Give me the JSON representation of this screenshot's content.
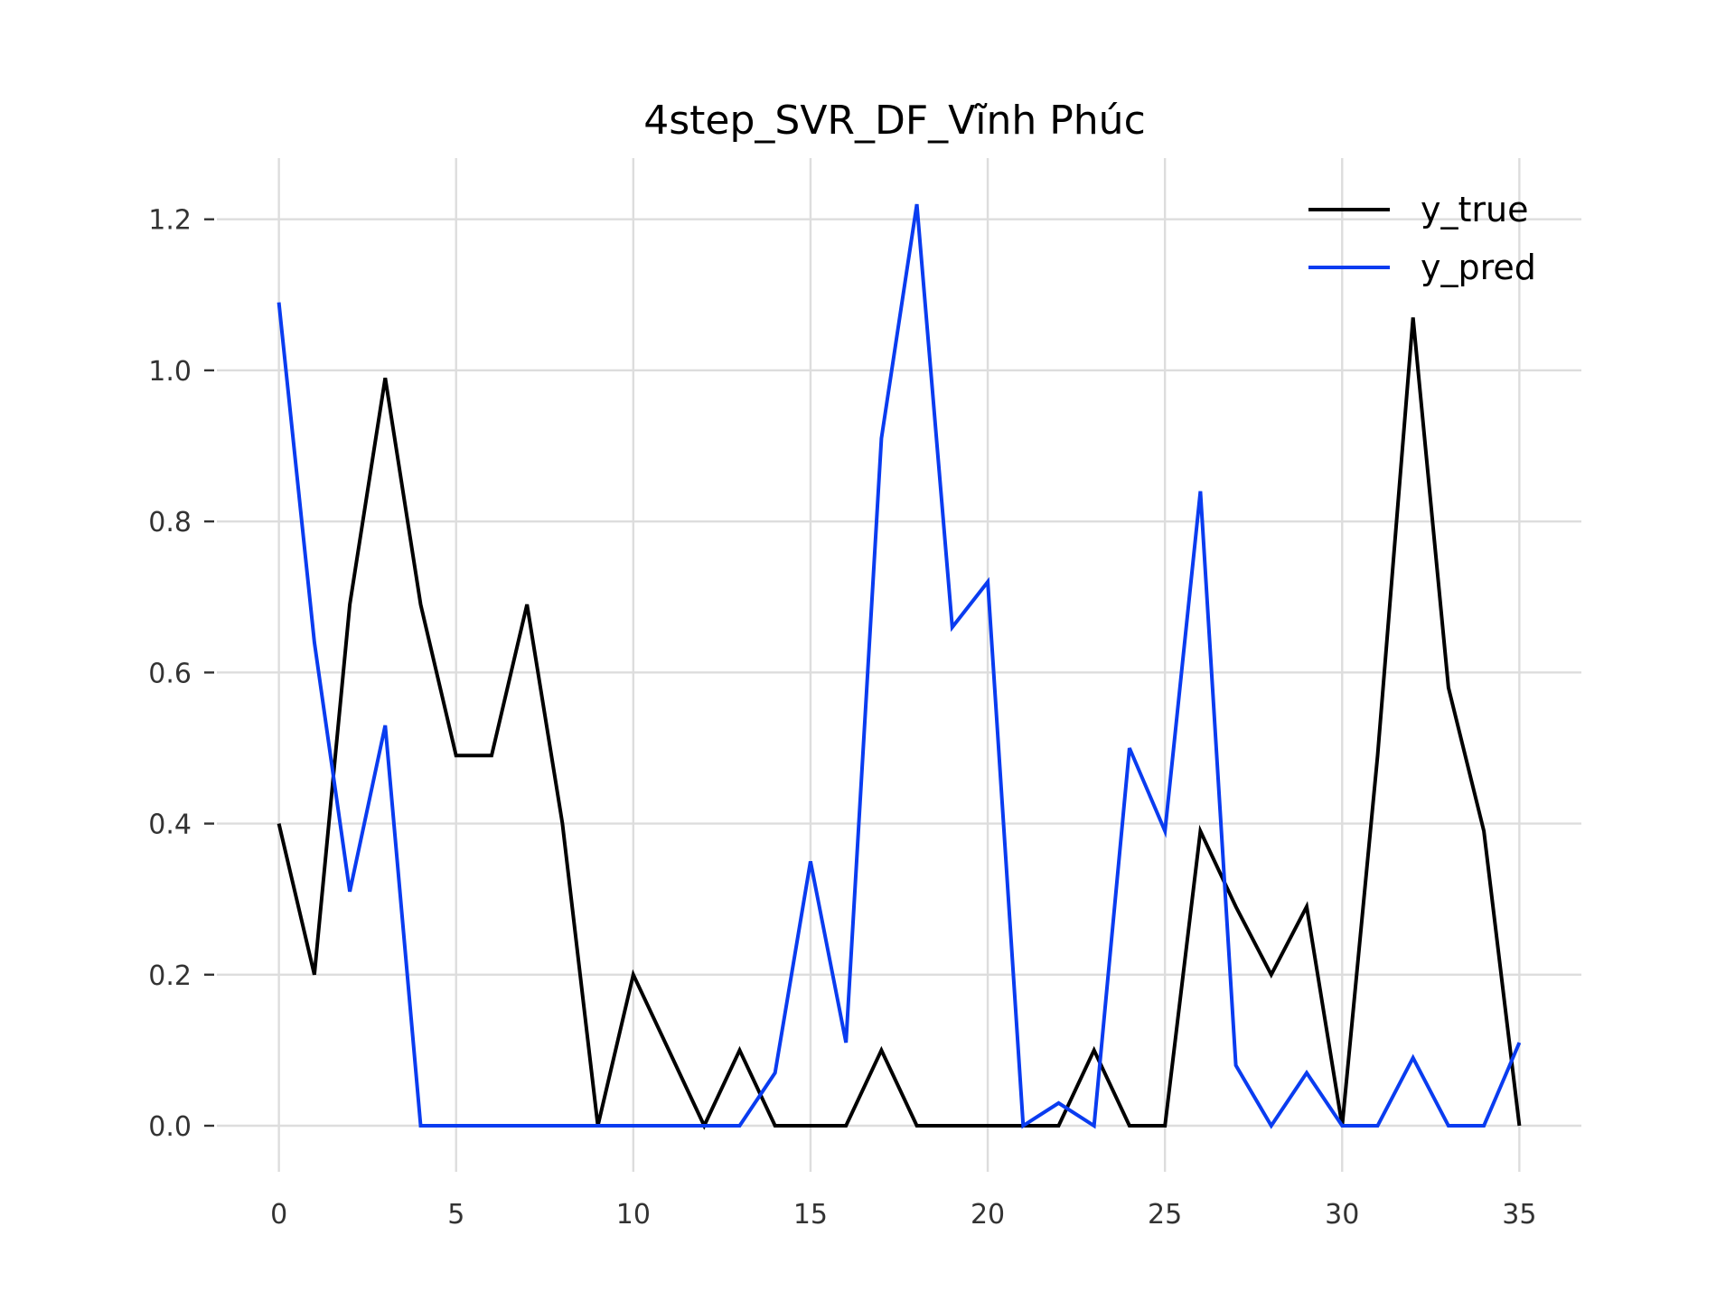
{
  "chart_data": {
    "type": "line",
    "title": "4step_SVR_DF_Vĩnh Phúc",
    "xlabel": "",
    "ylabel": "",
    "xlim": [
      -1.75,
      36.75
    ],
    "ylim": [
      -0.061,
      1.281
    ],
    "grid": true,
    "legend_position": "top-right",
    "x_ticks": [
      0,
      5,
      10,
      15,
      20,
      25,
      30,
      35
    ],
    "y_ticks": [
      0.0,
      0.2,
      0.4,
      0.6,
      0.8,
      1.0,
      1.2
    ],
    "y_tick_labels": [
      "0.0",
      "0.2",
      "0.4",
      "0.6",
      "0.8",
      "1.0",
      "1.2"
    ],
    "x": [
      0,
      1,
      2,
      3,
      4,
      5,
      6,
      7,
      8,
      9,
      10,
      11,
      12,
      13,
      14,
      15,
      16,
      17,
      18,
      19,
      20,
      21,
      22,
      23,
      24,
      25,
      26,
      27,
      28,
      29,
      30,
      31,
      32,
      33,
      34,
      35
    ],
    "series": [
      {
        "name": "y_true",
        "color": "#000000",
        "values": [
          0.4,
          0.2,
          0.69,
          0.99,
          0.69,
          0.49,
          0.49,
          0.69,
          0.4,
          0.0,
          0.2,
          0.1,
          0.0,
          0.1,
          0.0,
          0.0,
          0.0,
          0.1,
          0.0,
          0.0,
          0.0,
          0.0,
          0.0,
          0.1,
          0.0,
          0.0,
          0.39,
          0.29,
          0.2,
          0.29,
          0.0,
          0.49,
          1.07,
          0.58,
          0.39,
          0.0
        ]
      },
      {
        "name": "y_pred",
        "color": "#0a3cf0",
        "values": [
          1.09,
          0.64,
          0.31,
          0.53,
          0.0,
          0.0,
          0.0,
          0.0,
          0.0,
          0.0,
          0.0,
          0.0,
          0.0,
          0.0,
          0.07,
          0.35,
          0.11,
          0.91,
          1.22,
          0.66,
          0.72,
          0.0,
          0.03,
          0.0,
          0.5,
          0.39,
          0.84,
          0.08,
          0.0,
          0.07,
          0.0,
          0.0,
          0.09,
          0.0,
          0.0,
          0.11
        ]
      }
    ]
  }
}
